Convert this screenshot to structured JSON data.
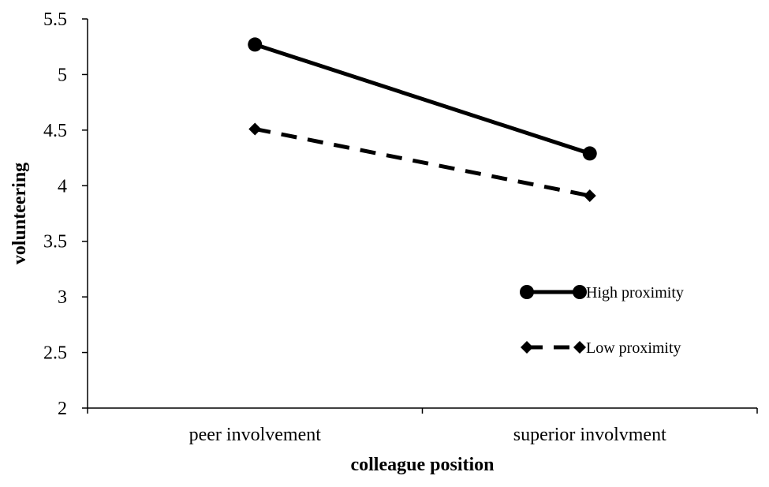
{
  "chart_data": {
    "type": "line",
    "categories": [
      "peer involvement",
      "superior involvment"
    ],
    "series": [
      {
        "name": "High proximity",
        "values": [
          5.27,
          4.29
        ],
        "line_style": "solid",
        "marker": "circle",
        "color": "#000000"
      },
      {
        "name": "Low proximity",
        "values": [
          4.51,
          3.91
        ],
        "line_style": "dashed",
        "marker": "diamond",
        "color": "#000000"
      }
    ],
    "xlabel": "colleague position",
    "ylabel": "volunteering",
    "ylim": [
      2,
      5.5
    ],
    "yticks": [
      "2",
      "2.5",
      "3",
      "3.5",
      "4",
      "4.5",
      "5",
      "5.5"
    ],
    "grid": false,
    "legend_position": "right"
  }
}
